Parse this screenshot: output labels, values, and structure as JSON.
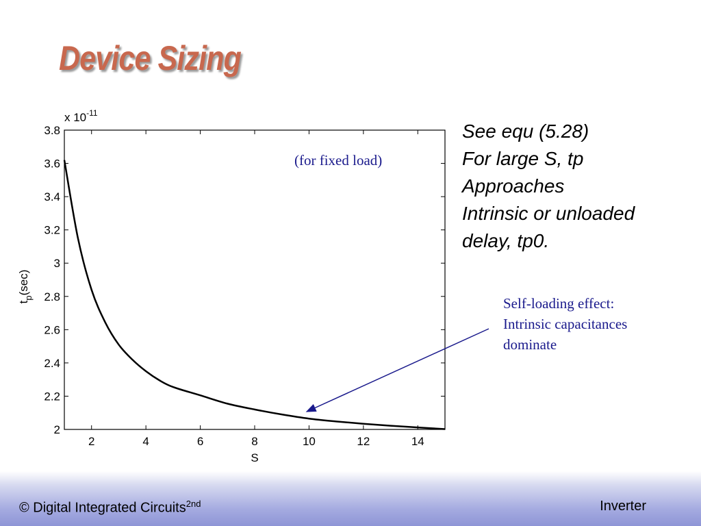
{
  "slide": {
    "title": "Device Sizing",
    "title_color": "#c8684e",
    "notes": [
      "See equ (5.28)",
      "For large S, tp",
      "Approaches",
      "Intrinsic or unloaded",
      "delay, tp0."
    ],
    "callout": {
      "lines": [
        "Self-loading effect:",
        "Intrinsic capacitances",
        "dominate"
      ],
      "color": "#1a1a8c"
    },
    "fixed_load_label": "(for fixed load)",
    "fixed_load_color": "#1a1a8c"
  },
  "footer": {
    "left_text": "© Digital Integrated Circuits",
    "left_sup": "2nd",
    "right_text": "Inverter"
  },
  "chart_data": {
    "type": "line",
    "xlabel": "S",
    "ylabel_main": "t",
    "ylabel_sub": "p",
    "ylabel_unit": "(sec)",
    "y_multiplier": "x 10",
    "y_multiplier_exp": "-11",
    "xlim": [
      1,
      15
    ],
    "ylim": [
      2,
      3.8
    ],
    "x_ticks": [
      2,
      4,
      6,
      8,
      10,
      12,
      14
    ],
    "y_ticks": [
      2,
      2.2,
      2.4,
      2.6,
      2.8,
      3,
      3.2,
      3.4,
      3.6,
      3.8
    ],
    "x_tick_labels": [
      "2",
      "4",
      "6",
      "8",
      "10",
      "12",
      "14"
    ],
    "y_tick_labels": [
      "2",
      "2.2",
      "2.4",
      "2.6",
      "2.8",
      "3",
      "3.2",
      "3.4",
      "3.6",
      "3.8"
    ],
    "grid": false,
    "series": [
      {
        "x": [
          1,
          1.5,
          2,
          2.5,
          3,
          3.5,
          4,
          4.5,
          5,
          6,
          7,
          8,
          9,
          10,
          11,
          12,
          13,
          14,
          15
        ],
        "y": [
          3.62,
          3.15,
          2.84,
          2.645,
          2.51,
          2.42,
          2.35,
          2.295,
          2.255,
          2.205,
          2.155,
          2.12,
          2.09,
          2.065,
          2.048,
          2.034,
          2.022,
          2.012,
          2.002
        ],
        "color": "#000000"
      }
    ]
  }
}
